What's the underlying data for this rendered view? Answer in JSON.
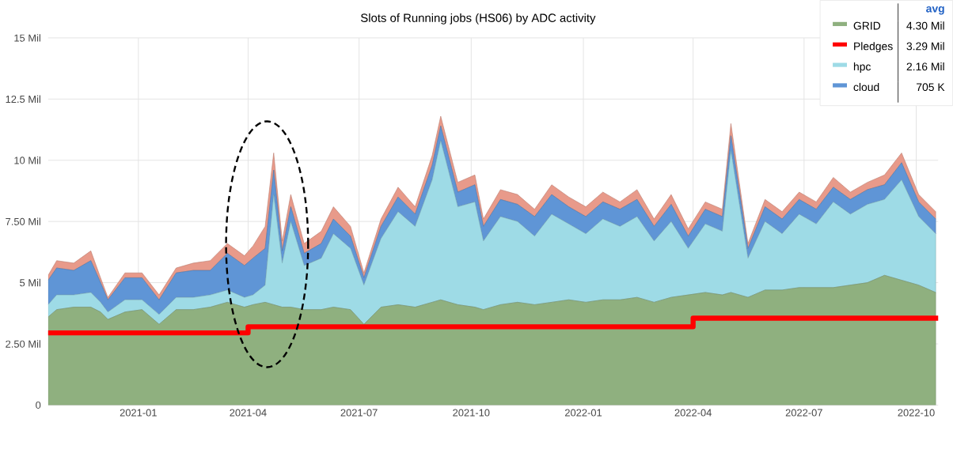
{
  "chart_data": {
    "type": "area",
    "stacked": true,
    "title": "Slots of Running jobs (HS06) by ADC activity",
    "x": [
      "2020-10-19",
      "2020-10-26",
      "2020-11-09",
      "2020-11-23",
      "2020-12-01",
      "2020-12-07",
      "2020-12-21",
      "2021-01-04",
      "2021-01-18",
      "2021-02-01",
      "2021-02-15",
      "2021-03-01",
      "2021-03-15",
      "2021-03-29",
      "2021-04-05",
      "2021-04-15",
      "2021-04-22",
      "2021-04-29",
      "2021-05-06",
      "2021-05-17",
      "2021-05-31",
      "2021-06-10",
      "2021-06-24",
      "2021-07-05",
      "2021-07-19",
      "2021-08-02",
      "2021-08-16",
      "2021-08-30",
      "2021-09-06",
      "2021-09-20",
      "2021-10-04",
      "2021-10-11",
      "2021-10-25",
      "2021-11-08",
      "2021-11-22",
      "2021-12-06",
      "2021-12-20",
      "2022-01-03",
      "2022-01-17",
      "2022-01-31",
      "2022-02-14",
      "2022-02-28",
      "2022-03-14",
      "2022-03-28",
      "2022-04-11",
      "2022-04-25",
      "2022-05-02",
      "2022-05-16",
      "2022-05-30",
      "2022-06-13",
      "2022-06-27",
      "2022-07-11",
      "2022-07-25",
      "2022-08-08",
      "2022-08-22",
      "2022-09-05",
      "2022-09-19",
      "2022-10-03",
      "2022-10-17"
    ],
    "series": [
      {
        "name": "GRID",
        "color": "#8fb07f",
        "values": [
          3.6,
          3.9,
          4.0,
          4.0,
          3.8,
          3.5,
          3.8,
          3.9,
          3.3,
          3.9,
          3.9,
          4.0,
          4.2,
          4.0,
          4.1,
          4.2,
          4.1,
          4.0,
          4.0,
          3.9,
          3.9,
          4.0,
          3.9,
          3.3,
          4.0,
          4.1,
          4.0,
          4.2,
          4.3,
          4.1,
          4.0,
          3.9,
          4.1,
          4.2,
          4.1,
          4.2,
          4.3,
          4.2,
          4.3,
          4.3,
          4.4,
          4.2,
          4.4,
          4.5,
          4.6,
          4.5,
          4.6,
          4.4,
          4.7,
          4.7,
          4.8,
          4.8,
          4.8,
          4.9,
          5.0,
          5.3,
          5.1,
          4.9,
          4.6
        ]
      },
      {
        "name": "Pledges",
        "type": "step",
        "color": "#ff0000",
        "x": [
          "2020-10-19",
          "2021-04-01",
          "2022-04-01",
          "2022-10-19"
        ],
        "values": [
          2.95,
          3.2,
          3.55,
          3.55
        ]
      },
      {
        "name": "hpc",
        "color": "#9edbe6",
        "values": [
          0.5,
          0.6,
          0.5,
          0.6,
          0.4,
          0.3,
          0.5,
          0.4,
          0.4,
          0.5,
          0.5,
          0.5,
          0.5,
          0.4,
          0.4,
          0.7,
          4.5,
          1.8,
          3.5,
          1.8,
          2.1,
          3.0,
          2.5,
          1.6,
          2.8,
          3.8,
          3.3,
          5.0,
          6.5,
          4.0,
          4.3,
          2.8,
          3.6,
          3.3,
          2.8,
          3.6,
          3.1,
          2.8,
          3.3,
          3.0,
          3.3,
          2.5,
          3.1,
          1.9,
          2.8,
          2.6,
          5.8,
          1.6,
          2.8,
          2.3,
          3.0,
          2.6,
          3.5,
          2.9,
          3.2,
          3.1,
          4.1,
          2.8,
          2.4
        ]
      },
      {
        "name": "cloud",
        "color": "#5f95d6",
        "values": [
          1.0,
          1.1,
          1.0,
          1.3,
          0.8,
          0.5,
          0.9,
          0.9,
          0.6,
          1.0,
          1.1,
          1.0,
          1.5,
          1.3,
          1.5,
          1.5,
          1.0,
          0.5,
          0.6,
          0.5,
          0.6,
          0.6,
          0.5,
          0.3,
          0.5,
          0.6,
          0.5,
          0.6,
          0.6,
          0.6,
          0.7,
          0.6,
          0.7,
          0.7,
          0.8,
          0.8,
          0.7,
          0.7,
          0.7,
          0.7,
          0.7,
          0.6,
          0.7,
          0.5,
          0.6,
          0.6,
          0.6,
          0.4,
          0.6,
          0.6,
          0.6,
          0.6,
          0.6,
          0.6,
          0.6,
          0.6,
          0.7,
          0.6,
          0.6
        ]
      },
      {
        "color": "#e89a8a",
        "values": [
          0.2,
          0.3,
          0.3,
          0.4,
          0.2,
          0.1,
          0.2,
          0.2,
          0.2,
          0.2,
          0.3,
          0.4,
          0.4,
          0.4,
          0.5,
          0.9,
          0.7,
          0.4,
          0.5,
          0.4,
          0.5,
          0.5,
          0.4,
          0.2,
          0.3,
          0.4,
          0.3,
          0.4,
          0.4,
          0.4,
          0.4,
          0.3,
          0.4,
          0.4,
          0.3,
          0.4,
          0.4,
          0.4,
          0.4,
          0.3,
          0.4,
          0.3,
          0.4,
          0.3,
          0.3,
          0.3,
          0.5,
          0.2,
          0.3,
          0.3,
          0.3,
          0.3,
          0.4,
          0.3,
          0.3,
          0.4,
          0.4,
          0.3,
          0.3
        ]
      }
    ],
    "xlim": [
      "2020-10-19",
      "2022-10-19"
    ],
    "xticks": [
      "2021-01",
      "2021-04",
      "2021-07",
      "2021-10",
      "2022-01",
      "2022-04",
      "2022-07",
      "2022-10"
    ],
    "ylim": [
      0,
      15
    ],
    "yticks": [
      0,
      {
        "value": 2.5,
        "label": "2.50 Mil"
      },
      {
        "value": 5,
        "label": "5 Mil"
      },
      {
        "value": 7.5,
        "label": "7.50 Mil"
      },
      {
        "value": 10,
        "label": "10 Mil"
      },
      {
        "value": 12.5,
        "label": "12.5 Mil"
      },
      {
        "value": 15,
        "label": "15 Mil"
      }
    ],
    "grid": true,
    "legend": "top right",
    "marker": "none",
    "line_style": "solid",
    "annotations": [
      "avg",
      "4.30 Mil",
      "3.29 Mil",
      "2.16 Mil",
      "705 K"
    ]
  }
}
